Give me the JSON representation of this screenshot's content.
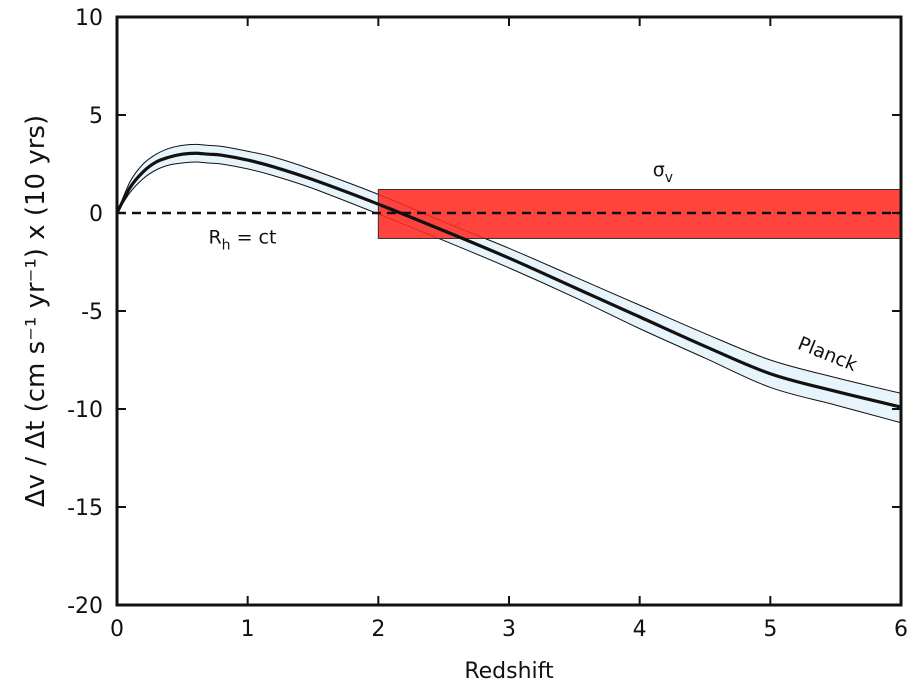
{
  "chart_data": {
    "type": "line",
    "xlabel": "Redshift",
    "ylabel": "Δv / Δt  (cm s⁻¹ yr⁻¹) x (10 yrs)",
    "xlim": [
      0,
      6
    ],
    "ylim": [
      -20,
      10
    ],
    "x_ticks": [
      0,
      1,
      2,
      3,
      4,
      5,
      6
    ],
    "y_ticks": [
      10,
      5,
      0,
      -5,
      -10,
      -15,
      -20
    ],
    "grid": false,
    "series": [
      {
        "name": "Planck",
        "style": "solid",
        "color": "#111111",
        "x": [
          0,
          0.1,
          0.2,
          0.3,
          0.4,
          0.5,
          0.6,
          0.7,
          0.8,
          1.0,
          1.2,
          1.5,
          2.0,
          2.5,
          3.0,
          3.5,
          4.0,
          4.5,
          5.0,
          5.5,
          6.0
        ],
        "y": [
          0,
          1.3,
          2.1,
          2.6,
          2.85,
          3.0,
          3.05,
          3.0,
          2.95,
          2.7,
          2.35,
          1.7,
          0.45,
          -0.9,
          -2.3,
          -3.8,
          -5.3,
          -6.8,
          -8.2,
          -9.1,
          -9.9
        ],
        "band_upper": [
          0,
          1.6,
          2.5,
          3.0,
          3.3,
          3.45,
          3.5,
          3.45,
          3.4,
          3.15,
          2.85,
          2.2,
          0.95,
          -0.45,
          -1.8,
          -3.25,
          -4.7,
          -6.15,
          -7.5,
          -8.4,
          -9.2
        ],
        "band_lower": [
          0,
          1.05,
          1.75,
          2.2,
          2.45,
          2.55,
          2.6,
          2.55,
          2.5,
          2.25,
          1.9,
          1.25,
          -0.05,
          -1.4,
          -2.8,
          -4.3,
          -5.9,
          -7.4,
          -8.9,
          -9.8,
          -10.7
        ],
        "band_color": "#e7f4fc"
      },
      {
        "name": "R_h = ct",
        "style": "dashed",
        "color": "#111111",
        "x": [
          0,
          6
        ],
        "y": [
          0,
          0
        ]
      }
    ],
    "regions": [
      {
        "name": "σ_v",
        "x_range": [
          2,
          6
        ],
        "y_range": [
          -1.3,
          1.2
        ],
        "color": "#ff2a22"
      }
    ],
    "annotations": [
      {
        "id": "sigma",
        "base": "σ",
        "sub": "v",
        "x": 4.1,
        "y": 1.9
      },
      {
        "id": "rh",
        "base": "R",
        "sub": "h",
        "rest": " = ct",
        "x": 0.7,
        "y": -1.55
      },
      {
        "id": "planck",
        "text": "Planck",
        "x": 5.2,
        "y": -6.9,
        "rotate": 22
      }
    ]
  }
}
